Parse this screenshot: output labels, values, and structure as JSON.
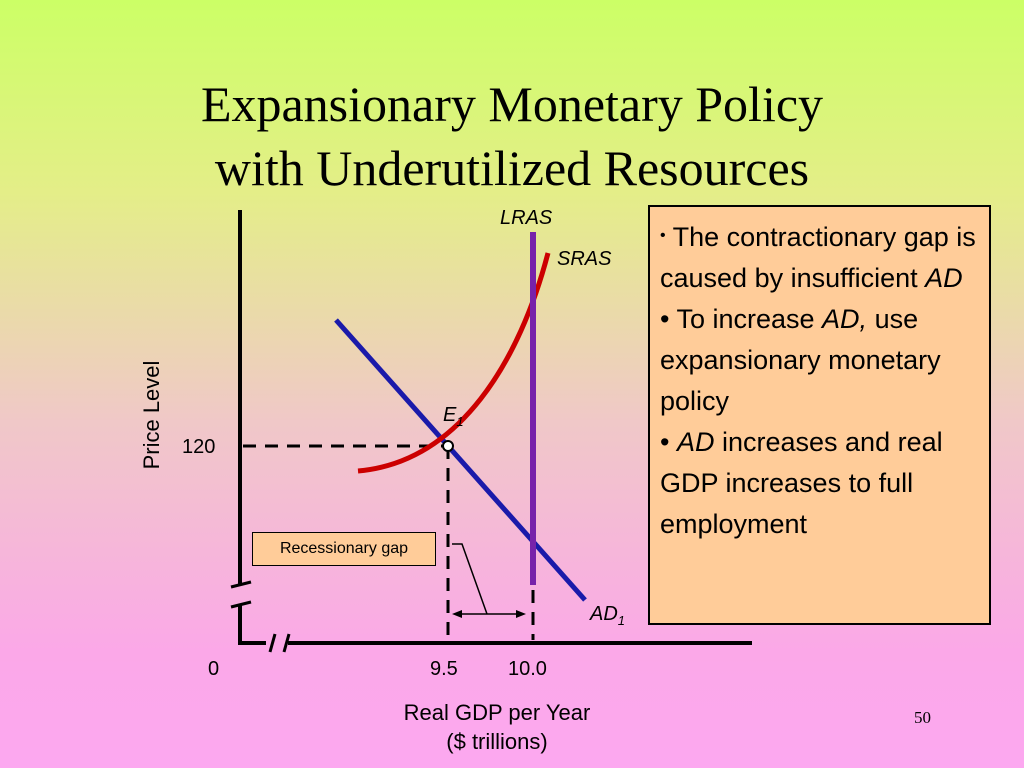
{
  "title": {
    "line1": "Expansionary Monetary Policy",
    "line2": "with Underutilized Resources"
  },
  "axes": {
    "y_label": "Price Level",
    "x_label_line1": "Real GDP per Year",
    "x_label_line2": "($ trillions)",
    "origin_label": "0",
    "y_tick": "120",
    "x_ticks": [
      "9.5",
      "10.0"
    ]
  },
  "curves": {
    "lras": "LRAS",
    "sras": "SRAS",
    "ad": "AD",
    "ad_sub": "1",
    "eq": "E",
    "eq_sub": "1"
  },
  "gap_label": "Recessionary gap",
  "note": {
    "b1_bullet": "•",
    "b1_text": " The contractionary gap is caused by insufficient ",
    "b1_em": "AD",
    "b2_bullet": "•",
    "b2_pre": " To increase ",
    "b2_em": "AD,",
    "b2_post1": " use",
    "b2_post2": " expansionary monetary policy",
    "b3_bullet": "•",
    "b3_em": "AD",
    "b3_post": " increases and real GDP increases to full employment"
  },
  "page_number": "50",
  "colors": {
    "ad_curve": "#1a1aaa",
    "sras_curve": "#cc0000",
    "lras_line": "#7722aa",
    "box_fill": "#ffcc99"
  }
}
